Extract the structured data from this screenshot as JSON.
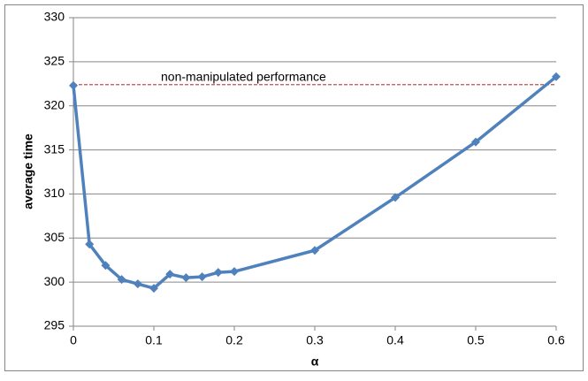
{
  "chart_data": {
    "type": "line",
    "xlabel": "α",
    "ylabel": "average time",
    "x": [
      0,
      0.02,
      0.04,
      0.06,
      0.08,
      0.1,
      0.12,
      0.14,
      0.16,
      0.18,
      0.2,
      0.3,
      0.4,
      0.5,
      0.6
    ],
    "values": [
      322.3,
      304.3,
      301.9,
      300.3,
      299.8,
      299.3,
      300.9,
      300.5,
      300.6,
      301.1,
      301.2,
      303.6,
      309.6,
      315.9,
      323.3
    ],
    "color": "#4f81bd",
    "xlim": [
      0,
      0.6
    ],
    "xticks": [
      0,
      0.1,
      0.2,
      0.3,
      0.4,
      0.5,
      0.6
    ],
    "ylim": [
      295,
      330
    ],
    "yticks": [
      295,
      300,
      305,
      310,
      315,
      320,
      325,
      330
    ],
    "grid": true,
    "reference_line": {
      "value": 322.4,
      "label": "non-manipulated performance",
      "color": "#c0504d"
    }
  }
}
